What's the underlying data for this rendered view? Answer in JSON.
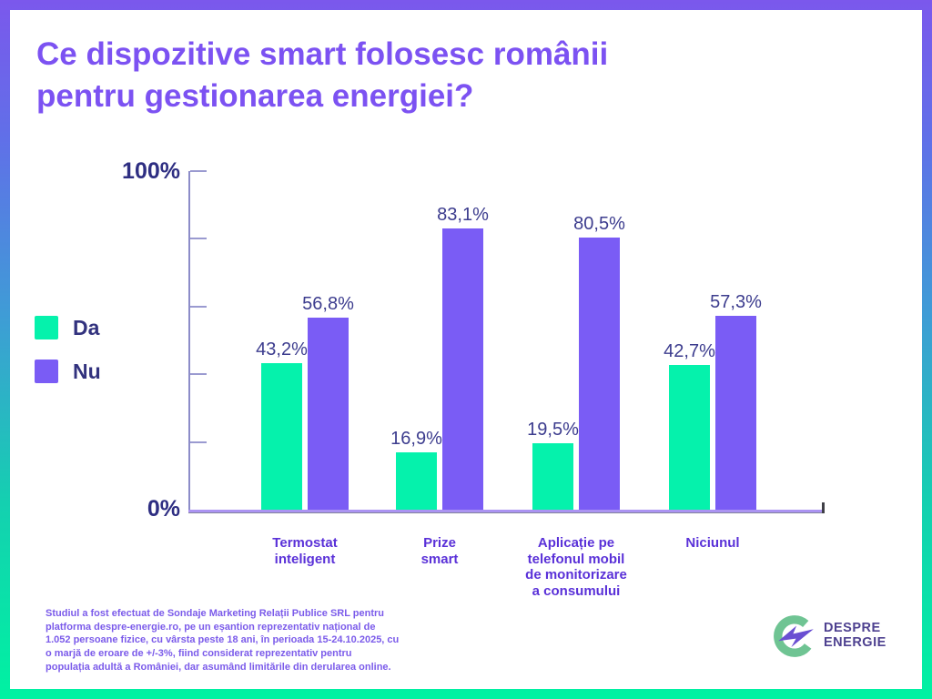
{
  "frame": {
    "gradient_top": "#7b58ec",
    "gradient_mid": "#3f9cd6",
    "gradient_bottom": "#00f2a2"
  },
  "title": {
    "text": "Ce dispozitive smart folosesc românii\npentru gestionarea energiei?",
    "color": "#7c52f2"
  },
  "legend": {
    "items": [
      {
        "label": "Da",
        "color": "#05f2ac"
      },
      {
        "label": "Nu",
        "color": "#7a5cf5"
      }
    ]
  },
  "chart_data": {
    "type": "bar",
    "title": "Ce dispozitive smart folosesc românii pentru gestionarea energiei?",
    "categories": [
      "Termostat\ninteligent",
      "Prize\nsmart",
      "Aplicație pe\ntelefonul mobil\nde monitorizare\na consumului",
      "Niciunul"
    ],
    "series": [
      {
        "name": "Da",
        "color": "#05f2ac",
        "values": [
          43.2,
          16.9,
          19.5,
          42.7
        ]
      },
      {
        "name": "Nu",
        "color": "#7a5cf5",
        "values": [
          56.8,
          83.1,
          80.5,
          57.3
        ]
      }
    ],
    "value_labels": [
      [
        "43,2%",
        "16,9%",
        "19,5%",
        "42,7%"
      ],
      [
        "56,8%",
        "83,1%",
        "80,5%",
        "57,3%"
      ]
    ],
    "ylabel_top": "100%",
    "ylabel_bottom": "0%",
    "ylim": [
      0,
      100
    ],
    "yticks": [
      20,
      40,
      60,
      80,
      100
    ],
    "grid": false,
    "legend_position": "left",
    "value_label_color": "#3c3c8e",
    "category_label_color": "#5a31d8",
    "axis_color": "#8c8cc8"
  },
  "footnote": {
    "text": "Studiul a fost efectuat de Sondaje Marketing Relații Publice SRL pentru\nplatforma despre-energie.ro, pe un eșantion reprezentativ național de\n1.052 persoane fizice, cu vârsta peste 18 ani, în perioada 15-24.10.2025, cu\no marjă de eroare de +/-3%, fiind considerat reprezentativ pentru\npopulația adultă a României, dar asumând limitările din derularea online.",
    "color": "#7b5bea"
  },
  "logo": {
    "line1": "DESPRE",
    "line2": "ENERGIE",
    "mark_color": "#6fc493",
    "bolt_color": "#6a4fd2",
    "text_color": "#4e4190"
  }
}
